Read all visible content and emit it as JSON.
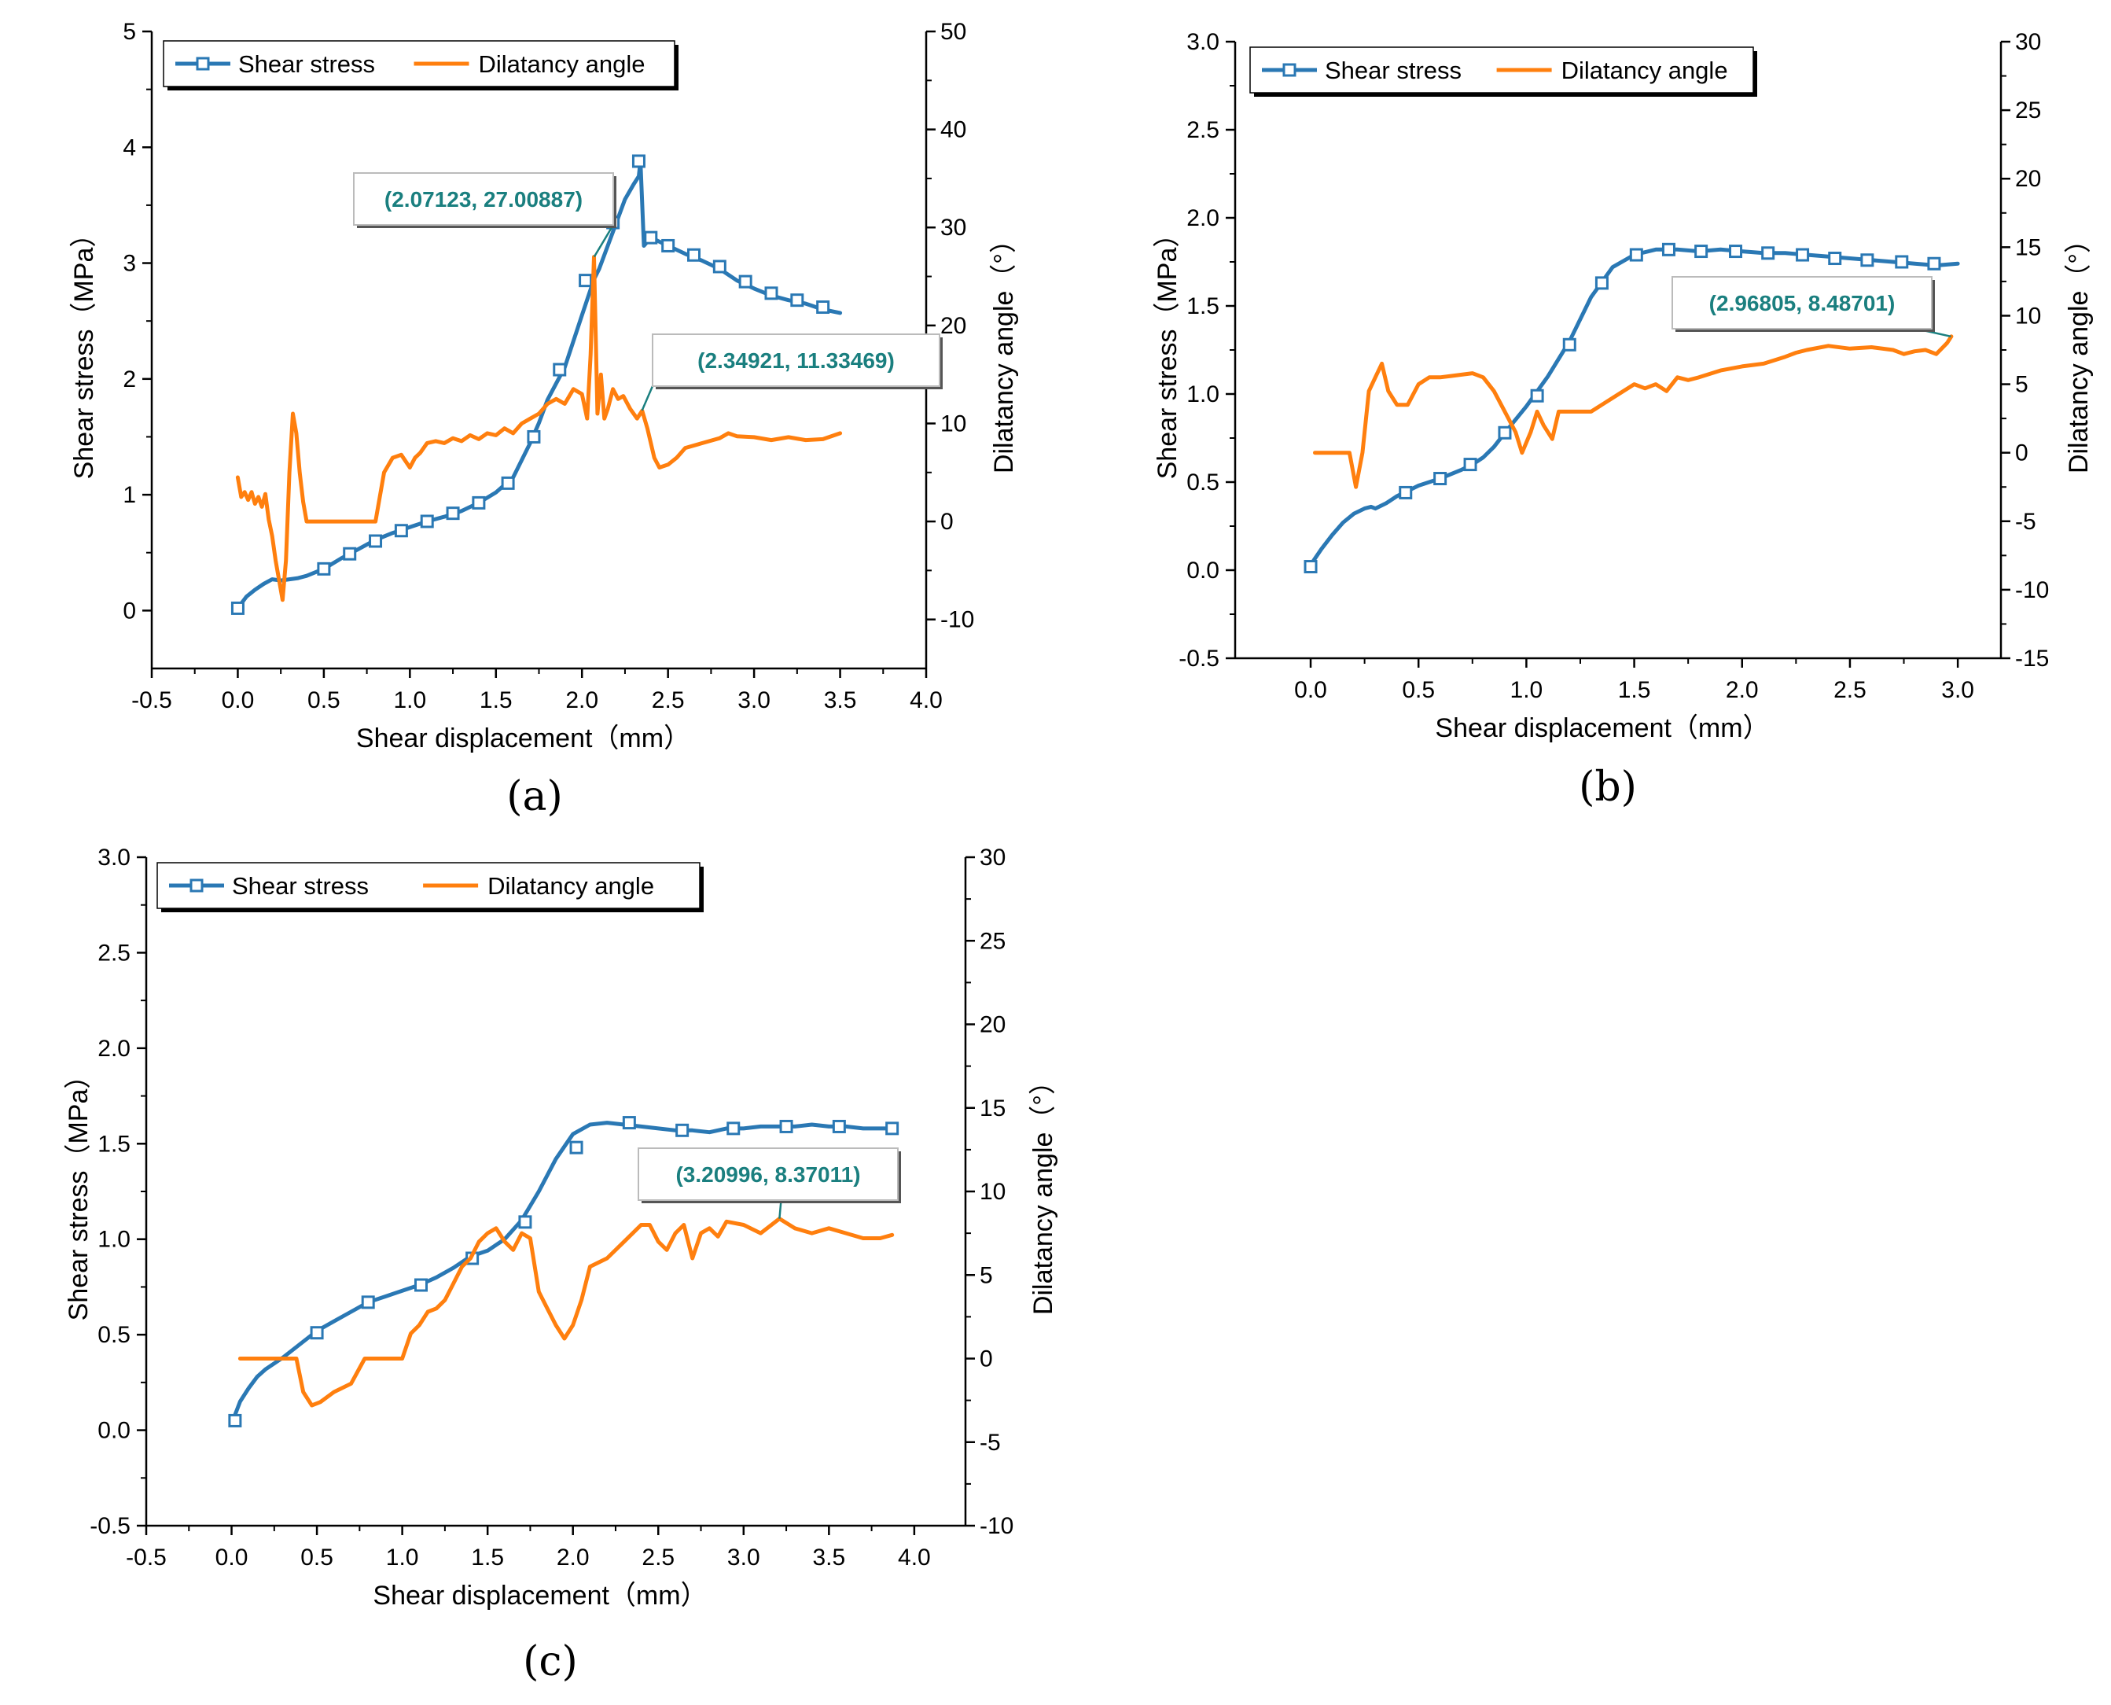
{
  "colors": {
    "shear_stress": "#2a78b4",
    "dilatancy_angle": "#ff7f0e",
    "annotation_text": "#1a7f7f",
    "annotation_leader": "#1a7f7f"
  },
  "chart_data": [
    {
      "panel": "(a)",
      "type": "line",
      "xlabel": "Shear displacement（mm）",
      "ylabel_left": "Shear stress（MPa）",
      "ylabel_right": "Dilatancy angle（°）",
      "xlim": [
        -0.5,
        4.0
      ],
      "xticks": [
        -0.5,
        0.0,
        0.5,
        1.0,
        1.5,
        2.0,
        2.5,
        3.0,
        3.5,
        4.0
      ],
      "xtick_labels": [
        "-0.5",
        "0.0",
        "0.5",
        "1.0",
        "1.5",
        "2.0",
        "2.5",
        "3.0",
        "3.5",
        "4.0"
      ],
      "ylim_left": [
        -0.5,
        5
      ],
      "yticks_left": [
        0,
        1,
        2,
        3,
        4,
        5
      ],
      "ytick_labels_left": [
        "0",
        "1",
        "2",
        "3",
        "4",
        "5"
      ],
      "ylim_right": [
        -15,
        50
      ],
      "yticks_right": [
        -10,
        0,
        10,
        20,
        30,
        40,
        50
      ],
      "ytick_labels_right": [
        "-10",
        "0",
        "10",
        "20",
        "30",
        "40",
        "50"
      ],
      "legend": [
        "Shear stress",
        "Dilatancy angle"
      ],
      "series": [
        {
          "name": "Shear stress",
          "axis": "left",
          "marker": "open-square",
          "x": [
            0.0,
            0.05,
            0.1,
            0.15,
            0.2,
            0.25,
            0.3,
            0.35,
            0.4,
            0.5,
            0.6,
            0.7,
            0.8,
            0.9,
            1.0,
            1.1,
            1.2,
            1.3,
            1.4,
            1.5,
            1.6,
            1.7,
            1.75,
            1.8,
            1.9,
            2.0,
            2.07,
            2.1,
            2.2,
            2.25,
            2.3,
            2.33,
            2.34,
            2.36,
            2.4,
            2.5,
            2.6,
            2.7,
            2.8,
            2.9,
            3.0,
            3.1,
            3.2,
            3.3,
            3.4,
            3.5
          ],
          "y": [
            0.02,
            0.12,
            0.18,
            0.23,
            0.27,
            0.26,
            0.27,
            0.28,
            0.3,
            0.36,
            0.45,
            0.53,
            0.61,
            0.67,
            0.72,
            0.77,
            0.81,
            0.86,
            0.93,
            1.02,
            1.15,
            1.45,
            1.62,
            1.82,
            2.1,
            2.55,
            2.86,
            2.95,
            3.35,
            3.55,
            3.68,
            3.75,
            3.88,
            3.15,
            3.22,
            3.15,
            3.08,
            3.02,
            2.95,
            2.85,
            2.78,
            2.72,
            2.68,
            2.65,
            2.6,
            2.57
          ],
          "marker_x": [
            0.0,
            0.5,
            0.65,
            0.8,
            0.95,
            1.1,
            1.25,
            1.4,
            1.57,
            1.72,
            1.87,
            2.02,
            2.18,
            2.33,
            2.4,
            2.5,
            2.65,
            2.8,
            2.95,
            3.1,
            3.25,
            3.4
          ],
          "marker_y": [
            0.02,
            0.36,
            0.49,
            0.6,
            0.69,
            0.77,
            0.84,
            0.93,
            1.1,
            1.5,
            2.08,
            2.85,
            3.35,
            3.88,
            3.22,
            3.15,
            3.07,
            2.97,
            2.84,
            2.74,
            2.68,
            2.62
          ]
        },
        {
          "name": "Dilatancy angle",
          "axis": "right",
          "x": [
            0.0,
            0.02,
            0.04,
            0.06,
            0.08,
            0.1,
            0.12,
            0.14,
            0.16,
            0.18,
            0.2,
            0.22,
            0.24,
            0.26,
            0.28,
            0.3,
            0.32,
            0.34,
            0.36,
            0.38,
            0.4,
            0.42,
            0.45,
            0.5,
            0.6,
            0.7,
            0.8,
            0.85,
            0.9,
            0.95,
            1.0,
            1.03,
            1.06,
            1.1,
            1.15,
            1.2,
            1.25,
            1.3,
            1.35,
            1.4,
            1.45,
            1.5,
            1.55,
            1.6,
            1.65,
            1.7,
            1.75,
            1.8,
            1.85,
            1.9,
            1.95,
            2.0,
            2.03,
            2.05,
            2.07,
            2.09,
            2.11,
            2.13,
            2.15,
            2.18,
            2.21,
            2.24,
            2.28,
            2.32,
            2.35,
            2.38,
            2.42,
            2.45,
            2.5,
            2.55,
            2.6,
            2.7,
            2.8,
            2.85,
            2.9,
            3.0,
            3.1,
            3.2,
            3.3,
            3.4,
            3.5
          ],
          "y": [
            4.5,
            2.5,
            3.0,
            2.2,
            3.0,
            1.8,
            2.5,
            1.5,
            2.8,
            0.2,
            -1.5,
            -4.0,
            -6.0,
            -8.0,
            -4.0,
            5.0,
            11.0,
            9.0,
            5.0,
            2.0,
            0.0,
            0.0,
            0.0,
            0.0,
            0.0,
            0.0,
            0.0,
            5.0,
            6.5,
            6.8,
            5.5,
            6.5,
            7.0,
            8.0,
            8.2,
            8.0,
            8.5,
            8.2,
            8.8,
            8.4,
            9.0,
            8.8,
            9.5,
            9.0,
            10.0,
            10.5,
            11.0,
            12.0,
            12.5,
            12.0,
            13.5,
            13.0,
            10.5,
            17.0,
            27.0,
            11.0,
            15.0,
            10.5,
            11.5,
            13.5,
            12.5,
            12.8,
            11.5,
            10.5,
            11.3,
            9.5,
            6.5,
            5.5,
            5.8,
            6.5,
            7.5,
            8.0,
            8.5,
            9.0,
            8.7,
            8.6,
            8.3,
            8.6,
            8.3,
            8.4,
            9.0
          ]
        }
      ],
      "annotations": [
        {
          "label": "(2.07123, 27.00887)",
          "x": 2.07123,
          "y": 27.00887
        },
        {
          "label": "(2.34921, 11.33469)",
          "x": 2.34921,
          "y": 11.33469
        }
      ]
    },
    {
      "panel": "(b)",
      "type": "line",
      "xlabel": "Shear displacement（mm）",
      "ylabel_left": "Shear stress（MPa）",
      "ylabel_right": "Dilatancy angle（°）",
      "xlim": [
        -0.35,
        3.2
      ],
      "xticks": [
        0.0,
        0.5,
        1.0,
        1.5,
        2.0,
        2.5,
        3.0
      ],
      "xtick_labels": [
        "0.0",
        "0.5",
        "1.0",
        "1.5",
        "2.0",
        "2.5",
        "3.0"
      ],
      "ylim_left": [
        -0.5,
        3.0
      ],
      "yticks_left": [
        -0.5,
        0.0,
        0.5,
        1.0,
        1.5,
        2.0,
        2.5,
        3.0
      ],
      "ytick_labels_left": [
        "-0.5",
        "0.0",
        "0.5",
        "1.0",
        "1.5",
        "2.0",
        "2.5",
        "3.0"
      ],
      "ylim_right": [
        -15,
        30
      ],
      "yticks_right": [
        -15,
        -10,
        -5,
        0,
        5,
        10,
        15,
        20,
        25,
        30
      ],
      "ytick_labels_right": [
        "-15",
        "-10",
        "-5",
        "0",
        "5",
        "10",
        "15",
        "20",
        "25",
        "30"
      ],
      "legend": [
        "Shear stress",
        "Dilatancy angle"
      ],
      "series": [
        {
          "name": "Shear stress",
          "axis": "left",
          "marker": "open-square",
          "x": [
            0.0,
            0.05,
            0.1,
            0.15,
            0.2,
            0.25,
            0.28,
            0.3,
            0.35,
            0.4,
            0.45,
            0.5,
            0.6,
            0.7,
            0.75,
            0.8,
            0.85,
            0.9,
            1.0,
            1.1,
            1.2,
            1.3,
            1.4,
            1.5,
            1.6,
            1.7,
            1.8,
            1.9,
            2.0,
            2.1,
            2.2,
            2.3,
            2.4,
            2.5,
            2.6,
            2.7,
            2.8,
            2.9,
            3.0
          ],
          "y": [
            0.03,
            0.12,
            0.2,
            0.27,
            0.32,
            0.35,
            0.36,
            0.35,
            0.38,
            0.42,
            0.45,
            0.48,
            0.52,
            0.57,
            0.6,
            0.64,
            0.7,
            0.78,
            0.93,
            1.1,
            1.3,
            1.55,
            1.72,
            1.79,
            1.82,
            1.82,
            1.81,
            1.82,
            1.81,
            1.8,
            1.8,
            1.79,
            1.78,
            1.77,
            1.76,
            1.75,
            1.74,
            1.73,
            1.74
          ],
          "marker_x": [
            0.0,
            0.44,
            0.6,
            0.74,
            0.9,
            1.05,
            1.2,
            1.35,
            1.51,
            1.66,
            1.81,
            1.97,
            2.12,
            2.28,
            2.43,
            2.58,
            2.74,
            2.89
          ],
          "marker_y": [
            0.02,
            0.44,
            0.52,
            0.6,
            0.78,
            0.99,
            1.28,
            1.63,
            1.79,
            1.82,
            1.81,
            1.81,
            1.8,
            1.79,
            1.77,
            1.76,
            1.75,
            1.74
          ]
        },
        {
          "name": "Dilatancy angle",
          "axis": "right",
          "x": [
            0.02,
            0.05,
            0.1,
            0.15,
            0.18,
            0.21,
            0.24,
            0.27,
            0.3,
            0.33,
            0.36,
            0.4,
            0.45,
            0.5,
            0.55,
            0.6,
            0.65,
            0.7,
            0.75,
            0.8,
            0.85,
            0.9,
            0.95,
            0.98,
            1.02,
            1.05,
            1.08,
            1.12,
            1.15,
            1.2,
            1.3,
            1.35,
            1.4,
            1.45,
            1.5,
            1.55,
            1.6,
            1.65,
            1.7,
            1.75,
            1.8,
            1.9,
            2.0,
            2.1,
            2.2,
            2.25,
            2.3,
            2.4,
            2.5,
            2.6,
            2.7,
            2.75,
            2.8,
            2.85,
            2.9,
            2.95,
            2.97
          ],
          "y": [
            0.0,
            0.0,
            0.0,
            0.0,
            0.0,
            -2.5,
            0.0,
            4.5,
            5.5,
            6.5,
            4.5,
            3.5,
            3.5,
            5.0,
            5.5,
            5.5,
            5.6,
            5.7,
            5.8,
            5.5,
            4.5,
            3.0,
            1.5,
            0.0,
            1.5,
            3.0,
            2.0,
            1.0,
            3.0,
            3.0,
            3.0,
            3.5,
            4.0,
            4.5,
            5.0,
            4.7,
            5.0,
            4.5,
            5.5,
            5.3,
            5.5,
            6.0,
            6.3,
            6.5,
            7.0,
            7.3,
            7.5,
            7.8,
            7.6,
            7.7,
            7.5,
            7.2,
            7.4,
            7.5,
            7.2,
            8.0,
            8.48701
          ]
        }
      ],
      "annotations": [
        {
          "label": "(2.96805, 8.48701)",
          "x": 2.96805,
          "y": 8.48701
        }
      ]
    },
    {
      "panel": "(c)",
      "type": "line",
      "xlabel": "Shear displacement（mm）",
      "ylabel_left": "Shear stress（MPa）",
      "ylabel_right": "Dilatancy angle（°）",
      "xlim": [
        -0.5,
        4.3
      ],
      "xticks": [
        -0.5,
        0.0,
        0.5,
        1.0,
        1.5,
        2.0,
        2.5,
        3.0,
        3.5,
        4.0
      ],
      "xtick_labels": [
        "-0.5",
        "0.0",
        "0.5",
        "1.0",
        "1.5",
        "2.0",
        "2.5",
        "3.0",
        "3.5",
        "4.0"
      ],
      "ylim_left": [
        -0.5,
        3.0
      ],
      "yticks_left": [
        -0.5,
        0.0,
        0.5,
        1.0,
        1.5,
        2.0,
        2.5,
        3.0
      ],
      "ytick_labels_left": [
        "-0.5",
        "0.0",
        "0.5",
        "1.0",
        "1.5",
        "2.0",
        "2.5",
        "3.0"
      ],
      "ylim_right": [
        -10,
        30
      ],
      "yticks_right": [
        -10,
        -5,
        0,
        5,
        10,
        15,
        20,
        25,
        30
      ],
      "ytick_labels_right": [
        "-10",
        "-5",
        "0",
        "5",
        "10",
        "15",
        "20",
        "25",
        "30"
      ],
      "legend": [
        "Shear stress",
        "Dilatancy angle"
      ],
      "series": [
        {
          "name": "Shear stress",
          "axis": "left",
          "marker": "open-square",
          "x": [
            0.02,
            0.05,
            0.1,
            0.15,
            0.2,
            0.3,
            0.4,
            0.5,
            0.6,
            0.7,
            0.8,
            0.9,
            1.0,
            1.1,
            1.2,
            1.3,
            1.4,
            1.5,
            1.6,
            1.7,
            1.8,
            1.9,
            2.0,
            2.1,
            2.2,
            2.3,
            2.4,
            2.5,
            2.6,
            2.7,
            2.8,
            2.9,
            3.0,
            3.1,
            3.2,
            3.3,
            3.4,
            3.5,
            3.6,
            3.7,
            3.8,
            3.87
          ],
          "y": [
            0.08,
            0.15,
            0.22,
            0.28,
            0.32,
            0.38,
            0.45,
            0.52,
            0.57,
            0.62,
            0.67,
            0.7,
            0.73,
            0.76,
            0.8,
            0.85,
            0.91,
            0.94,
            1.0,
            1.1,
            1.25,
            1.42,
            1.55,
            1.6,
            1.61,
            1.6,
            1.59,
            1.58,
            1.57,
            1.57,
            1.56,
            1.58,
            1.58,
            1.59,
            1.59,
            1.59,
            1.6,
            1.59,
            1.59,
            1.58,
            1.58,
            1.58
          ],
          "marker_x": [
            0.02,
            0.5,
            0.8,
            1.11,
            1.41,
            1.72,
            2.02,
            2.33,
            2.64,
            2.94,
            3.25,
            3.56,
            3.87
          ],
          "marker_y": [
            0.05,
            0.51,
            0.67,
            0.76,
            0.9,
            1.09,
            1.48,
            1.61,
            1.57,
            1.58,
            1.59,
            1.59,
            1.58
          ]
        },
        {
          "name": "Dilatancy angle",
          "axis": "right",
          "x": [
            0.05,
            0.1,
            0.2,
            0.3,
            0.38,
            0.42,
            0.47,
            0.52,
            0.6,
            0.7,
            0.78,
            0.85,
            0.95,
            1.0,
            1.05,
            1.1,
            1.15,
            1.2,
            1.25,
            1.3,
            1.35,
            1.4,
            1.45,
            1.5,
            1.55,
            1.6,
            1.65,
            1.7,
            1.75,
            1.8,
            1.85,
            1.9,
            1.95,
            2.0,
            2.05,
            2.1,
            2.2,
            2.3,
            2.4,
            2.45,
            2.5,
            2.55,
            2.6,
            2.65,
            2.7,
            2.75,
            2.8,
            2.85,
            2.9,
            3.0,
            3.1,
            3.21,
            3.3,
            3.4,
            3.5,
            3.6,
            3.7,
            3.8,
            3.87
          ],
          "y": [
            0.0,
            0.0,
            0.0,
            0.0,
            0.0,
            -2.0,
            -2.8,
            -2.6,
            -2.0,
            -1.5,
            0.0,
            0.0,
            0.0,
            0.0,
            1.5,
            2.0,
            2.8,
            3.0,
            3.5,
            4.5,
            5.5,
            6.0,
            7.0,
            7.5,
            7.8,
            7.0,
            6.5,
            7.5,
            7.2,
            4.0,
            3.0,
            2.0,
            1.2,
            2.0,
            3.5,
            5.5,
            6.0,
            7.0,
            8.0,
            8.0,
            7.0,
            6.5,
            7.5,
            8.0,
            6.0,
            7.5,
            7.8,
            7.3,
            8.2,
            8.0,
            7.5,
            8.37,
            7.8,
            7.5,
            7.8,
            7.5,
            7.2,
            7.2,
            7.4
          ]
        }
      ],
      "annotations": [
        {
          "label": "(3.20996, 8.37011)",
          "x": 3.20996,
          "y": 8.37011
        }
      ]
    }
  ]
}
